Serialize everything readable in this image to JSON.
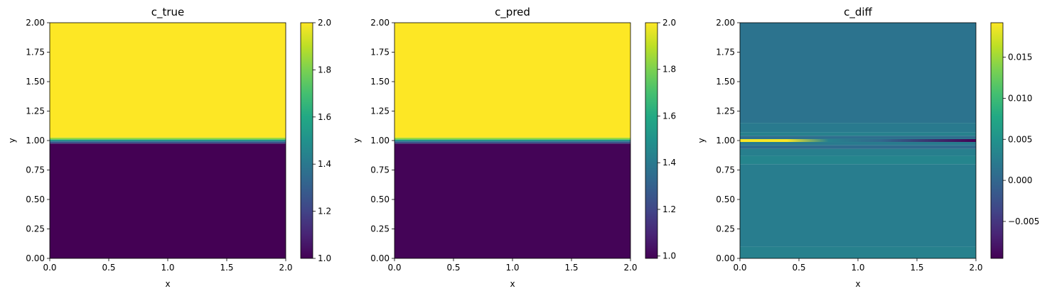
{
  "chart_data": [
    {
      "type": "heatmap",
      "title": "c_true",
      "xlabel": "x",
      "ylabel": "y",
      "xlim": [
        0,
        2
      ],
      "ylim": [
        0,
        2
      ],
      "x_ticks": [
        "0.0",
        "0.5",
        "1.0",
        "1.5",
        "2.0"
      ],
      "y_ticks": [
        "0.00",
        "0.25",
        "0.50",
        "0.75",
        "1.00",
        "1.25",
        "1.50",
        "1.75",
        "2.00"
      ],
      "colorbar": {
        "colormap": "viridis",
        "range": [
          1.0,
          2.0
        ],
        "ticks": [
          1.0,
          1.2,
          1.4,
          1.6,
          1.8,
          2.0
        ],
        "tick_labels": [
          "1.0",
          "1.2",
          "1.4",
          "1.6",
          "1.8",
          "2.0"
        ]
      },
      "field": {
        "description_values": "y < 1 → 1.0, y > 1 → 2.0 (sharp interface at y=1.0)",
        "bands": [
          {
            "y0": 0.0,
            "y1": 0.975,
            "value": 1.0
          },
          {
            "y0": 0.975,
            "y1": 0.99,
            "value": 1.25
          },
          {
            "y0": 0.99,
            "y1": 1.0,
            "value": 1.4
          },
          {
            "y0": 1.0,
            "y1": 1.01,
            "value": 1.6
          },
          {
            "y0": 1.01,
            "y1": 1.025,
            "value": 1.85
          },
          {
            "y0": 1.025,
            "y1": 2.0,
            "value": 2.0
          }
        ]
      }
    },
    {
      "type": "heatmap",
      "title": "c_pred",
      "xlabel": "x",
      "ylabel": "y",
      "xlim": [
        0,
        2
      ],
      "ylim": [
        0,
        2
      ],
      "x_ticks": [
        "0.0",
        "0.5",
        "1.0",
        "1.5",
        "2.0"
      ],
      "y_ticks": [
        "0.00",
        "0.25",
        "0.50",
        "0.75",
        "1.00",
        "1.25",
        "1.50",
        "1.75",
        "2.00"
      ],
      "colorbar": {
        "colormap": "viridis",
        "range": [
          0.99,
          2.0
        ],
        "ticks": [
          1.0,
          1.2,
          1.4,
          1.6,
          1.8,
          2.0
        ],
        "tick_labels": [
          "1.0",
          "1.2",
          "1.4",
          "1.6",
          "1.8",
          "2.0"
        ]
      },
      "field": {
        "bands": [
          {
            "y0": 0.0,
            "y1": 0.975,
            "value": 1.0
          },
          {
            "y0": 0.975,
            "y1": 0.99,
            "value": 1.25
          },
          {
            "y0": 0.99,
            "y1": 1.0,
            "value": 1.4
          },
          {
            "y0": 1.0,
            "y1": 1.01,
            "value": 1.6
          },
          {
            "y0": 1.01,
            "y1": 1.025,
            "value": 1.85
          },
          {
            "y0": 1.025,
            "y1": 2.0,
            "value": 2.0
          }
        ]
      }
    },
    {
      "type": "heatmap",
      "title": "c_diff",
      "xlabel": "x",
      "ylabel": "y",
      "xlim": [
        0,
        2
      ],
      "ylim": [
        0,
        2
      ],
      "x_ticks": [
        "0.0",
        "0.5",
        "1.0",
        "1.5",
        "2.0"
      ],
      "y_ticks": [
        "0.00",
        "0.25",
        "0.50",
        "0.75",
        "1.00",
        "1.25",
        "1.50",
        "1.75",
        "2.00"
      ],
      "colorbar": {
        "colormap": "viridis",
        "range": [
          -0.0095,
          0.0192
        ],
        "ticks": [
          -0.005,
          0.0,
          0.005,
          0.01,
          0.015
        ],
        "tick_labels": [
          "−0.005",
          "0.000",
          "0.005",
          "0.010",
          "0.015"
        ]
      },
      "field": {
        "background_value": 0.0015,
        "bands": [
          {
            "y0": 0.0,
            "y1": 0.1,
            "value": 0.003
          },
          {
            "y0": 0.1,
            "y1": 0.8,
            "value": 0.0025
          },
          {
            "y0": 0.8,
            "y1": 0.87,
            "value": 0.0035
          },
          {
            "y0": 0.87,
            "y1": 0.93,
            "value": 0.0028
          },
          {
            "y0": 0.93,
            "y1": 0.96,
            "value": 0.0005
          },
          {
            "y0": 0.96,
            "y1": 0.985,
            "value": 0.0022
          },
          {
            "y0": 0.985,
            "y1": 1.015,
            "value": 0.003
          },
          {
            "y0": 1.015,
            "y1": 1.04,
            "value": 0.0008
          },
          {
            "y0": 1.04,
            "y1": 1.07,
            "value": 0.003
          },
          {
            "y0": 1.07,
            "y1": 1.15,
            "value": 0.0022
          },
          {
            "y0": 1.15,
            "y1": 2.0,
            "value": 0.0014
          }
        ],
        "interface_line": {
          "y": 1.0,
          "x_high_end": 0.4,
          "high_value": 0.019,
          "low_value": -0.0095
        }
      }
    }
  ]
}
